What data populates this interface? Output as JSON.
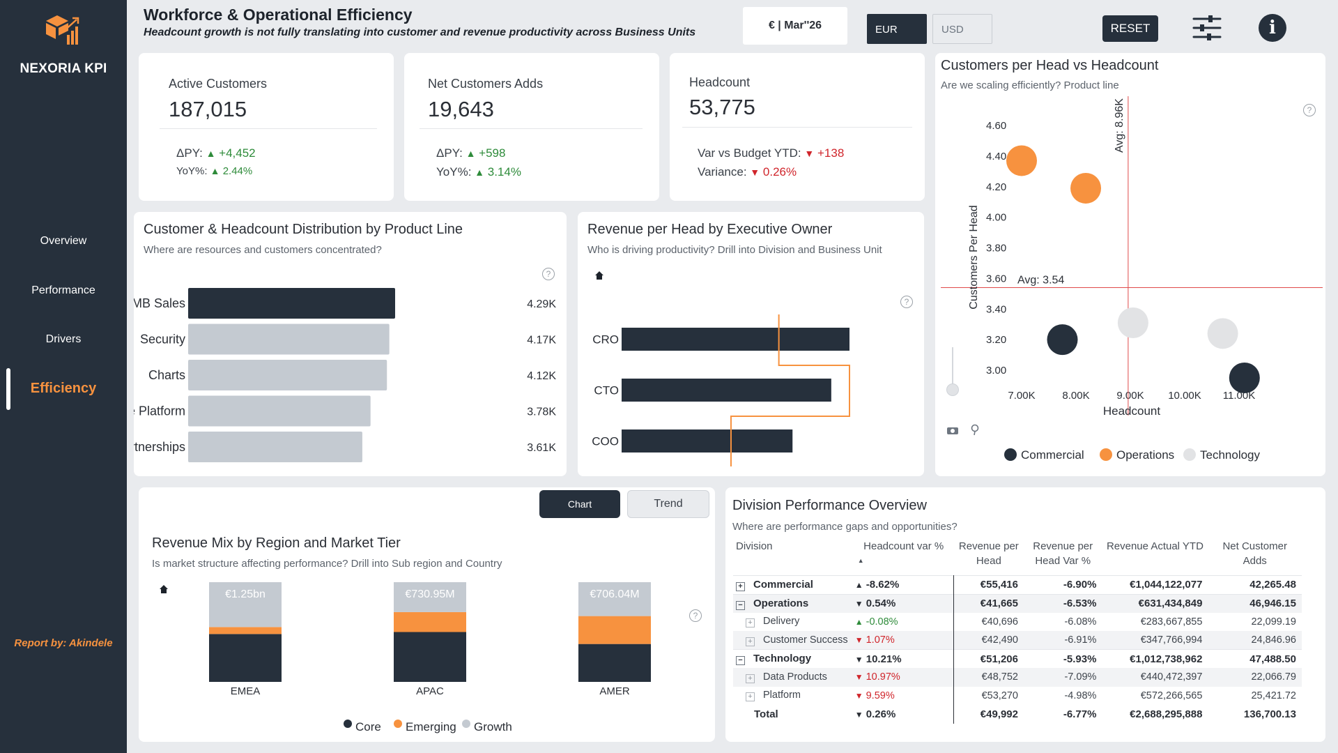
{
  "sidebar": {
    "brand": "NEXORIA KPI",
    "nav": [
      "Overview",
      "Performance",
      "Drivers",
      "Efficiency"
    ],
    "active": "Efficiency",
    "author": "Report by: Akindele"
  },
  "header": {
    "title": "Workforce & Operational Efficiency",
    "subtitle": "Headcount growth is not fully translating into customer and revenue productivity across Business Units",
    "period": "€ | Mar''26",
    "currency_options": [
      "EUR",
      "USD"
    ],
    "currency_selected": "EUR",
    "reset_label": "RESET"
  },
  "kpis": {
    "active_customers": {
      "label": "Active Customers",
      "value": "187,015",
      "line1_label": "ΔPY:",
      "line1_value": "+4,452",
      "line2_label": "YoY%:",
      "line2_value": "2.44%"
    },
    "net_adds": {
      "label": "Net Customers Adds",
      "value": "19,643",
      "line1_label": "ΔPY:",
      "line1_value": "+598",
      "line2_label": "YoY%:",
      "line2_value": "3.14%"
    },
    "headcount": {
      "label": "Headcount",
      "value": "53,775",
      "line1_label": "Var vs Budget YTD:",
      "line1_value": "+138",
      "line2_label": "Variance:",
      "line2_value": "0.26%"
    }
  },
  "dist_chart": {
    "title": "Customer & Headcount Distribution by Product Line",
    "subtitle": "Where are resources and customers concentrated?",
    "chart_data": {
      "type": "bar",
      "categories": [
        "SMB Sales",
        "Security",
        "Charts",
        "Core Platform",
        "Partnerships"
      ],
      "values": [
        4.29,
        4.17,
        4.12,
        3.78,
        3.61
      ],
      "value_labels": [
        "4.29K",
        "4.17K",
        "4.12K",
        "3.78K",
        "3.61K"
      ],
      "highlight_color": "#26303c",
      "other_color": "#c4cad1"
    }
  },
  "rev_owner": {
    "title": "Revenue per Head by Executive Owner",
    "subtitle": "Who is driving productivity? Drill into Division and Business Unit",
    "chart_data": {
      "type": "bar",
      "categories": [
        "CRO",
        "CTO",
        "COO"
      ],
      "values": [
        1.0,
        0.92,
        0.75
      ],
      "targets": [
        0.69,
        0.69,
        0.48
      ],
      "bar_color": "#26303c",
      "target_color": "#f7923f"
    }
  },
  "scatter": {
    "title": "Customers per Head vs Headcount",
    "subtitle": "Are we scaling efficiently? Product line",
    "chart_data": {
      "type": "scatter",
      "xlabel": "Headcount",
      "ylabel": "Customers Per Head",
      "x_ticks": [
        "7.00K",
        "8.00K",
        "9.00K",
        "10.00K",
        "11.00K"
      ],
      "y_ticks": [
        "4.60",
        "4.40",
        "4.20",
        "4.00",
        "3.80",
        "3.60",
        "3.40",
        "3.20",
        "3.00"
      ],
      "xlim": [
        6.5,
        11.9
      ],
      "ylim": [
        2.83,
        4.7
      ],
      "avg_x_label": "Avg: 8.96K",
      "avg_y_label": "Avg: 3.54",
      "avg_x": 8.96,
      "avg_y": 3.54,
      "points": [
        {
          "x": 7.0,
          "y": 4.37,
          "group": "Operations"
        },
        {
          "x": 8.18,
          "y": 4.19,
          "group": "Operations"
        },
        {
          "x": 7.75,
          "y": 3.2,
          "group": "Commercial"
        },
        {
          "x": 9.05,
          "y": 3.31,
          "group": "Technology"
        },
        {
          "x": 10.7,
          "y": 3.24,
          "group": "Technology"
        },
        {
          "x": 11.1,
          "y": 2.95,
          "group": "Commercial"
        }
      ],
      "legend": [
        {
          "name": "Commercial",
          "color": "#26303c"
        },
        {
          "name": "Operations",
          "color": "#f7923f"
        },
        {
          "name": "Technology",
          "color": "#e2e3e5"
        }
      ]
    }
  },
  "toggle": {
    "chart": "Chart",
    "trend": "Trend",
    "selected": "Chart"
  },
  "revenue_mix": {
    "title": "Revenue Mix by Region and Market Tier",
    "subtitle": "Is market structure affecting performance? Drill into Sub region and Country",
    "chart_data": {
      "type": "bar",
      "stacked": true,
      "normalized": true,
      "categories": [
        "EMEA",
        "APAC",
        "AMER"
      ],
      "totals": [
        "€1.25bn",
        "€730.95M",
        "€706.04M"
      ],
      "series": [
        {
          "name": "Core",
          "color": "#26303c",
          "values": [
            0.48,
            0.5,
            0.38
          ]
        },
        {
          "name": "Emerging",
          "color": "#f7923f",
          "values": [
            0.07,
            0.2,
            0.28
          ]
        },
        {
          "name": "Growth",
          "color": "#c4cad1",
          "values": [
            0.45,
            0.3,
            0.34
          ]
        }
      ]
    }
  },
  "table": {
    "title": "Division Performance Overview",
    "subtitle": "Where are performance gaps and opportunities?",
    "headers": [
      "Division",
      "Headcount var %",
      "Revenue per Head",
      "Revenue per Head Var %",
      "Revenue Actual YTD",
      "Net Customer Adds"
    ],
    "rows": [
      {
        "level": 0,
        "expand": "+",
        "name": "Commercial",
        "hc_var": "-8.62%",
        "hc_dir": "up",
        "rph": "€55,416",
        "rph_var": "-6.90%",
        "rev": "€1,044,122,077",
        "nca": "42,265.48"
      },
      {
        "level": 0,
        "expand": "−",
        "name": "Operations",
        "hc_var": "0.54%",
        "hc_dir": "down",
        "rph": "€41,665",
        "rph_var": "-6.53%",
        "rev": "€631,434,849",
        "nca": "46,946.15"
      },
      {
        "level": 1,
        "expand": "+",
        "name": "Delivery",
        "hc_var": "-0.08%",
        "hc_dir": "up",
        "rph": "€40,696",
        "rph_var": "-6.08%",
        "rev": "€283,667,855",
        "nca": "22,099.19"
      },
      {
        "level": 1,
        "expand": "+",
        "name": "Customer Success",
        "hc_var": "1.07%",
        "hc_dir": "down",
        "rph": "€42,490",
        "rph_var": "-6.91%",
        "rev": "€347,766,994",
        "nca": "24,846.96"
      },
      {
        "level": 0,
        "expand": "−",
        "name": "Technology",
        "hc_var": "10.21%",
        "hc_dir": "down",
        "rph": "€51,206",
        "rph_var": "-5.93%",
        "rev": "€1,012,738,962",
        "nca": "47,488.50"
      },
      {
        "level": 1,
        "expand": "+",
        "name": "Data Products",
        "hc_var": "10.97%",
        "hc_dir": "down",
        "rph": "€48,752",
        "rph_var": "-7.09%",
        "rev": "€440,472,397",
        "nca": "22,066.79"
      },
      {
        "level": 1,
        "expand": "+",
        "name": "Platform",
        "hc_var": "9.59%",
        "hc_dir": "down",
        "rph": "€53,270",
        "rph_var": "-4.98%",
        "rev": "€572,266,565",
        "nca": "25,421.72"
      }
    ],
    "total": {
      "name": "Total",
      "hc_var": "0.26%",
      "hc_dir": "down",
      "rph": "€49,992",
      "rph_var": "-6.77%",
      "rev": "€2,688,295,888",
      "nca": "136,700.13"
    }
  }
}
